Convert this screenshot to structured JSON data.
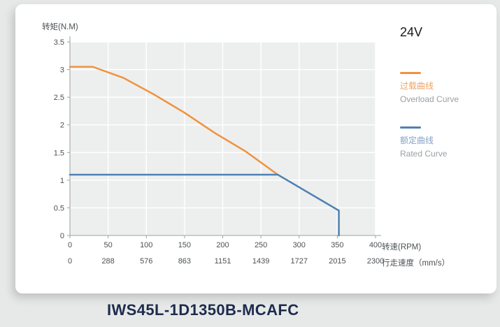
{
  "model_title": "IWS45L-1D1350B-MCAFC",
  "legend": {
    "voltage": "24V",
    "overload": {
      "cn": "过载曲线",
      "en": "Overload Curve"
    },
    "rated": {
      "cn": "额定曲线",
      "en": "Rated Curve"
    }
  },
  "chart_data": {
    "type": "line",
    "title": "24V",
    "ylabel": "转矩(N.M)",
    "xlabel": "转速(RPM)",
    "x2label": "行走速度（mm/s）",
    "xlim": [
      0,
      400
    ],
    "ylim": [
      0,
      3.5
    ],
    "x_ticks": [
      0,
      50,
      100,
      150,
      200,
      250,
      300,
      350,
      400
    ],
    "x2_ticks": [
      0,
      288,
      576,
      863,
      1151,
      1439,
      1727,
      2015,
      2300
    ],
    "y_ticks": [
      0,
      0.5,
      1,
      1.5,
      2,
      2.5,
      3,
      3.5
    ],
    "grid": true,
    "legend_position": "right",
    "plot_bg": "#edefee",
    "grid_color": "#ffffff",
    "axis_color": "#9aa0a2",
    "series": [
      {
        "name": "Overload Curve 过载曲线",
        "color": "#f0923e",
        "points": [
          [
            0,
            3.05
          ],
          [
            30,
            3.05
          ],
          [
            70,
            2.85
          ],
          [
            110,
            2.55
          ],
          [
            150,
            2.22
          ],
          [
            190,
            1.85
          ],
          [
            230,
            1.52
          ],
          [
            272,
            1.1
          ]
        ]
      },
      {
        "name": "Rated Curve 额定曲线",
        "color": "#4f81b3",
        "points": [
          [
            0,
            1.1
          ],
          [
            272,
            1.1
          ],
          [
            352,
            0.45
          ],
          [
            352,
            0
          ]
        ]
      }
    ]
  }
}
